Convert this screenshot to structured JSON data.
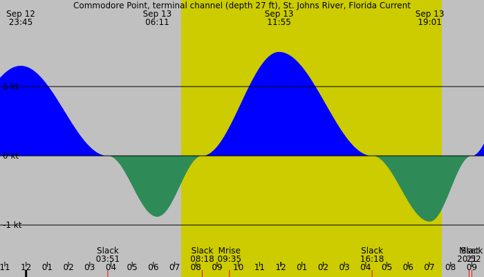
{
  "chart_data": {
    "type": "area",
    "title": "Commodore Point, terminal channel (depth 27 ft), St. Johns River, Florida Current",
    "y_axis": {
      "unit": "kt",
      "ylim": [
        -1.4,
        1.4
      ],
      "ticks": [
        {
          "value": 1,
          "label": "1 kt"
        },
        {
          "value": 0,
          "label": "0 kt"
        },
        {
          "value": -1,
          "label": "-1 kt"
        }
      ]
    },
    "x_axis": {
      "hour_labels": [
        "11",
        "12",
        "01",
        "02",
        "03",
        "04",
        "05",
        "06",
        "07",
        "08",
        "09",
        "10",
        "11",
        "12",
        "01",
        "02",
        "03",
        "04",
        "05",
        "06",
        "07",
        "08",
        "09"
      ],
      "first_hour": 23,
      "last_hour": 45.9
    },
    "daylight": {
      "start_hour": 31.3,
      "end_hour": 43.6
    },
    "colors": {
      "flood": "#0000ff",
      "ebb": "#2e8b57",
      "day": "#cccc00",
      "night": "#c0c0c0"
    },
    "current_series": {
      "name": "Current",
      "points": [
        {
          "hour": 23.75,
          "value": 1.3
        },
        {
          "hour": 27.85,
          "value": 0
        },
        {
          "hour": 30.18,
          "value": -0.88
        },
        {
          "hour": 32.3,
          "value": 0
        },
        {
          "hour": 35.92,
          "value": 1.5
        },
        {
          "hour": 40.3,
          "value": 0
        },
        {
          "hour": 43.02,
          "value": -0.95
        },
        {
          "hour": 45.0,
          "value": 0
        },
        {
          "hour": 46.5,
          "value": 0.55
        }
      ]
    },
    "extremes": [
      {
        "date": "Sep 12",
        "time": "23:45",
        "hour": 23.75
      },
      {
        "date": "Sep 13",
        "time": "06:11",
        "hour": 30.18
      },
      {
        "date": "Sep 13",
        "time": "11:55",
        "hour": 35.92
      },
      {
        "date": "Sep 13",
        "time": "19:01",
        "hour": 43.02
      }
    ],
    "events": [
      {
        "label": "Slack",
        "time": "03:51",
        "hour": 27.85
      },
      {
        "label": "Slack",
        "time": "08:18",
        "hour": 32.3
      },
      {
        "label": "Mrise",
        "time": "09:35",
        "hour": 33.58
      },
      {
        "label": "Slack",
        "time": "16:18",
        "hour": 40.3
      },
      {
        "label": "Mset",
        "time": "20:52",
        "hour": 44.87
      },
      {
        "label": "Slack",
        "time": "21",
        "hour": 45.0
      }
    ]
  }
}
